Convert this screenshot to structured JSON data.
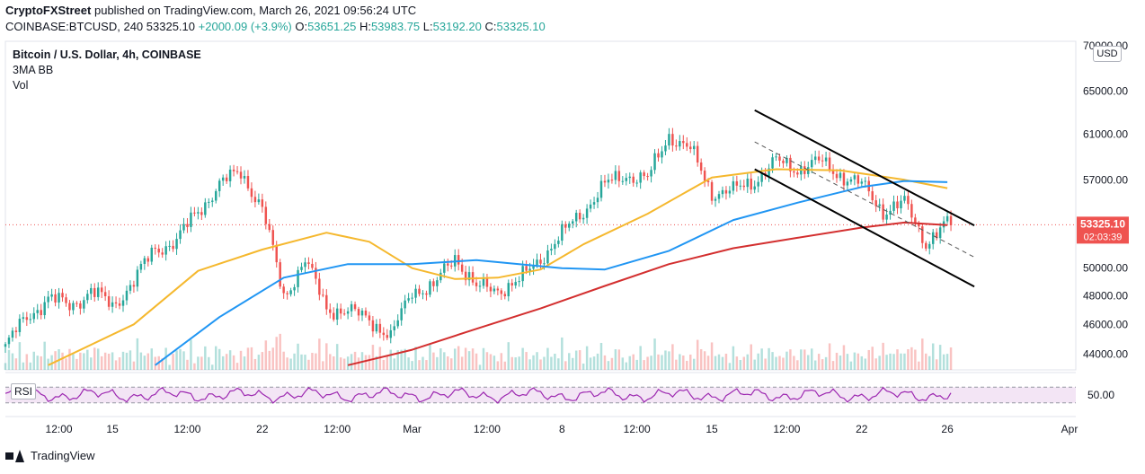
{
  "header": {
    "publisher": "CryptoFXStreet",
    "published_text": "published on TradingView.com, March 26, 2021 09:56:24 UTC",
    "symbol_line": "COINBASE:BTCUSD, 240",
    "last": "53325.10",
    "change": "+2000.09 (+3.9%)",
    "o_label": "O:",
    "o": "53651.25",
    "h_label": "H:",
    "h": "53983.75",
    "l_label": "L:",
    "l": "53192.20",
    "c_label": "C:",
    "c": "53325.10"
  },
  "legend": {
    "title": "Bitcoin / U.S. Dollar, 4h, COINBASE",
    "indicator": "3MA BB",
    "volume": "Vol"
  },
  "price_axis": {
    "currency": "USD",
    "current_price": "53325.10",
    "countdown": "02:03:39",
    "ticks": [
      "70000.00",
      "65000.00",
      "61000.00",
      "57000.00",
      "50000.00",
      "48000.00",
      "46000.00",
      "44000.00"
    ]
  },
  "rsi": {
    "label": "RSI",
    "tick": "50.00"
  },
  "time_axis": {
    "ticks": [
      "12:00",
      "15",
      "12:00",
      "22",
      "12:00",
      "Mar",
      "12:00",
      "8",
      "12:00",
      "15",
      "12:00",
      "22",
      "26",
      "Apr"
    ]
  },
  "footer": {
    "brand": "TradingView"
  },
  "colors": {
    "up": "#26a69a",
    "down": "#ef5350",
    "ma_fast": "#f5b82e",
    "ma_mid": "#2196f3",
    "ma_slow": "#d32f2f",
    "rsi": "#9c27b0",
    "rsi_band": "#f3e5f5",
    "channel": "#000000"
  },
  "chart_data": {
    "type": "candlestick",
    "title": "Bitcoin / U.S. Dollar, 4h, COINBASE",
    "ylim": [
      43000,
      70000
    ],
    "y_ticks": [
      44000,
      46000,
      48000,
      50000,
      57000,
      61000,
      65000,
      70000
    ],
    "y_scale": "log",
    "x_range": [
      "2021-02-10",
      "2021-04-01"
    ],
    "price_path": [
      {
        "d": "2021-02-10",
        "p": 44500
      },
      {
        "d": "2021-02-11",
        "p": 46500
      },
      {
        "d": "2021-02-12",
        "p": 47800
      },
      {
        "d": "2021-02-13",
        "p": 47300
      },
      {
        "d": "2021-02-14",
        "p": 48300
      },
      {
        "d": "2021-02-15",
        "p": 47300
      },
      {
        "d": "2021-02-16",
        "p": 49000
      },
      {
        "d": "2021-02-17",
        "p": 51500
      },
      {
        "d": "2021-02-18",
        "p": 52000
      },
      {
        "d": "2021-02-19",
        "p": 54500
      },
      {
        "d": "2021-02-20",
        "p": 56500
      },
      {
        "d": "2021-02-21",
        "p": 57800
      },
      {
        "d": "2021-02-22",
        "p": 54500
      },
      {
        "d": "2021-02-23",
        "p": 48000
      },
      {
        "d": "2021-02-24",
        "p": 50500
      },
      {
        "d": "2021-02-25",
        "p": 47200
      },
      {
        "d": "2021-02-26",
        "p": 46800
      },
      {
        "d": "2021-02-27",
        "p": 46500
      },
      {
        "d": "2021-02-28",
        "p": 45000
      },
      {
        "d": "2021-03-01",
        "p": 48500
      },
      {
        "d": "2021-03-02",
        "p": 48500
      },
      {
        "d": "2021-03-03",
        "p": 51000
      },
      {
        "d": "2021-03-04",
        "p": 48500
      },
      {
        "d": "2021-03-05",
        "p": 48500
      },
      {
        "d": "2021-03-06",
        "p": 49000
      },
      {
        "d": "2021-03-07",
        "p": 50800
      },
      {
        "d": "2021-03-08",
        "p": 52500
      },
      {
        "d": "2021-03-09",
        "p": 54500
      },
      {
        "d": "2021-03-10",
        "p": 56500
      },
      {
        "d": "2021-03-11",
        "p": 57500
      },
      {
        "d": "2021-03-12",
        "p": 57000
      },
      {
        "d": "2021-03-13",
        "p": 61000
      },
      {
        "d": "2021-03-14",
        "p": 59500
      },
      {
        "d": "2021-03-15",
        "p": 56000
      },
      {
        "d": "2021-03-16",
        "p": 56000
      },
      {
        "d": "2021-03-17",
        "p": 57000
      },
      {
        "d": "2021-03-18",
        "p": 58500
      },
      {
        "d": "2021-03-19",
        "p": 58000
      },
      {
        "d": "2021-03-20",
        "p": 58500
      },
      {
        "d": "2021-03-21",
        "p": 57500
      },
      {
        "d": "2021-03-22",
        "p": 56500
      },
      {
        "d": "2021-03-23",
        "p": 54500
      },
      {
        "d": "2021-03-24",
        "p": 55000
      },
      {
        "d": "2021-03-25",
        "p": 52000
      },
      {
        "d": "2021-03-26",
        "p": 53325
      }
    ],
    "series": [
      {
        "name": "MA fast",
        "points": [
          {
            "d": "2021-02-12",
            "p": 43300
          },
          {
            "d": "2021-02-16",
            "p": 46000
          },
          {
            "d": "2021-02-19",
            "p": 49800
          },
          {
            "d": "2021-02-22",
            "p": 51400
          },
          {
            "d": "2021-02-25",
            "p": 52700
          },
          {
            "d": "2021-02-27",
            "p": 52000
          },
          {
            "d": "2021-03-01",
            "p": 50000
          },
          {
            "d": "2021-03-03",
            "p": 49200
          },
          {
            "d": "2021-03-05",
            "p": 49300
          },
          {
            "d": "2021-03-07",
            "p": 49900
          },
          {
            "d": "2021-03-09",
            "p": 51800
          },
          {
            "d": "2021-03-12",
            "p": 54200
          },
          {
            "d": "2021-03-15",
            "p": 57200
          },
          {
            "d": "2021-03-18",
            "p": 57900
          },
          {
            "d": "2021-03-21",
            "p": 57800
          },
          {
            "d": "2021-03-24",
            "p": 57000
          },
          {
            "d": "2021-03-26",
            "p": 56300
          }
        ]
      },
      {
        "name": "MA mid",
        "points": [
          {
            "d": "2021-02-17",
            "p": 43300
          },
          {
            "d": "2021-02-20",
            "p": 46500
          },
          {
            "d": "2021-02-23",
            "p": 49300
          },
          {
            "d": "2021-02-26",
            "p": 50300
          },
          {
            "d": "2021-03-01",
            "p": 50300
          },
          {
            "d": "2021-03-04",
            "p": 50600
          },
          {
            "d": "2021-03-08",
            "p": 50000
          },
          {
            "d": "2021-03-10",
            "p": 49900
          },
          {
            "d": "2021-03-13",
            "p": 51300
          },
          {
            "d": "2021-03-16",
            "p": 53700
          },
          {
            "d": "2021-03-19",
            "p": 55100
          },
          {
            "d": "2021-03-22",
            "p": 56400
          },
          {
            "d": "2021-03-24",
            "p": 56900
          },
          {
            "d": "2021-03-26",
            "p": 56800
          }
        ]
      },
      {
        "name": "MA slow",
        "points": [
          {
            "d": "2021-02-26",
            "p": 43300
          },
          {
            "d": "2021-03-01",
            "p": 44300
          },
          {
            "d": "2021-03-04",
            "p": 45700
          },
          {
            "d": "2021-03-07",
            "p": 47100
          },
          {
            "d": "2021-03-10",
            "p": 48700
          },
          {
            "d": "2021-03-13",
            "p": 50300
          },
          {
            "d": "2021-03-16",
            "p": 51500
          },
          {
            "d": "2021-03-19",
            "p": 52300
          },
          {
            "d": "2021-03-22",
            "p": 53100
          },
          {
            "d": "2021-03-24",
            "p": 53500
          },
          {
            "d": "2021-03-26",
            "p": 53300
          }
        ]
      }
    ],
    "channel": {
      "upper": [
        {
          "d": "2021-03-17",
          "p": 63200
        },
        {
          "d": "2021-03-26",
          "p": 54400
        }
      ],
      "lower": [
        {
          "d": "2021-03-17",
          "p": 57900
        },
        {
          "d": "2021-03-26",
          "p": 49700
        }
      ],
      "mid": [
        {
          "d": "2021-03-17",
          "p": 60300
        },
        {
          "d": "2021-03-26",
          "p": 51900
        }
      ]
    },
    "rsi_band": [
      30,
      70
    ],
    "rsi_tick": 50
  }
}
